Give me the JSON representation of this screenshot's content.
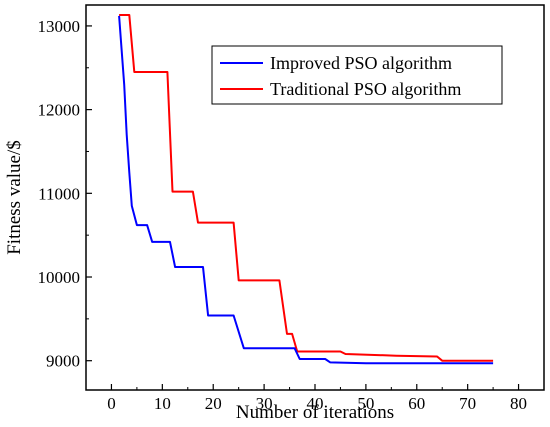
{
  "chart_data": {
    "type": "line",
    "title": "",
    "xlabel": "Number of iterations",
    "ylabel": "Fitness value/$",
    "xlim": [
      -5,
      85
    ],
    "ylim": [
      8650,
      13250
    ],
    "xticks": [
      0,
      10,
      20,
      30,
      40,
      50,
      60,
      70,
      80
    ],
    "yticks": [
      9000,
      10000,
      11000,
      12000,
      13000
    ],
    "grid": false,
    "legend_position": "top-right",
    "series": [
      {
        "name": "Improved PSO algorithm",
        "color": "#0000ff",
        "x": [
          1.5,
          2.5,
          3,
          3.5,
          4,
          5,
          7,
          8,
          11.5,
          12.5,
          18,
          19,
          24,
          26,
          36,
          37,
          42,
          43,
          50,
          75
        ],
        "y": [
          13120,
          12300,
          11700,
          11250,
          10850,
          10620,
          10620,
          10420,
          10420,
          10120,
          10120,
          9540,
          9540,
          9150,
          9150,
          9020,
          9020,
          8980,
          8970,
          8970
        ]
      },
      {
        "name": "Traditional PSO algorithm",
        "color": "#ff0000",
        "x": [
          1.5,
          3.5,
          4.5,
          11,
          12,
          16,
          17,
          24,
          25,
          33,
          34.5,
          35.5,
          36.5,
          45,
          46,
          56,
          64,
          65,
          75
        ],
        "y": [
          13130,
          13130,
          12450,
          12450,
          11020,
          11020,
          10650,
          10650,
          9960,
          9960,
          9320,
          9320,
          9110,
          9110,
          9080,
          9060,
          9050,
          9000,
          9000
        ]
      }
    ]
  }
}
